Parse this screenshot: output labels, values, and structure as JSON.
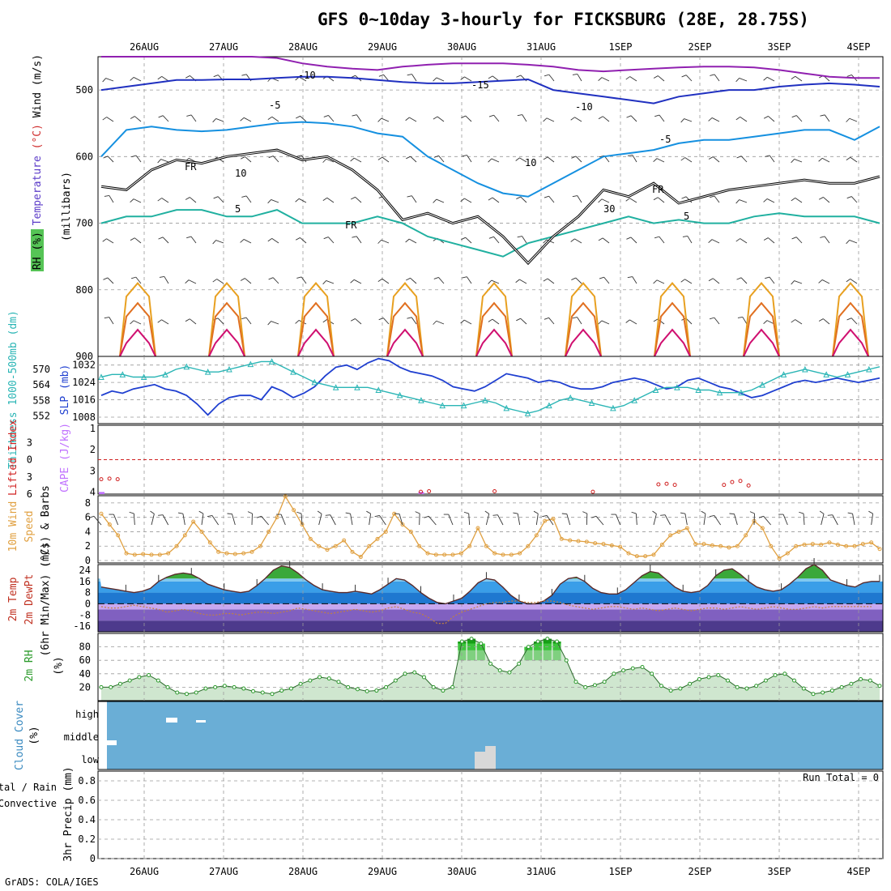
{
  "title": "GFS 0~10day 3-hourly for FICKSBURG (28E, 28.75S)",
  "credit": "GrADS: COLA/IGES",
  "dates": [
    "26AUG",
    "27AUG",
    "28AUG",
    "29AUG",
    "30AUG",
    "31AUG",
    "1SEP",
    "2SEP",
    "3SEP",
    "4SEP"
  ],
  "colors": {
    "grid": "#9a9a9a",
    "slp": "#1f3fd0",
    "thickness": "#2ab5b5",
    "cape": "#c070ff",
    "li": "#d02020",
    "wind": "#e0a040",
    "barb": "#7a5c3a",
    "rh": "#2a9a2a",
    "cloud": "#6aaed6",
    "cloud_low": "#d8d8d8",
    "frz": "#000000"
  },
  "chart_data": [
    {
      "panel": "upper",
      "type": "line",
      "ylabel_parts": [
        "RH (%)",
        "Temperature (°C)",
        "Wind (m/s)"
      ],
      "ylabel_axis": "(millibars)",
      "ylim": [
        900,
        450
      ],
      "yticks": [
        500,
        600,
        700,
        800,
        900
      ],
      "isotherm_labels": [
        {
          "text": "-10",
          "color": "#2030c0"
        },
        {
          "text": "-15",
          "color": "#9020b0"
        },
        {
          "text": "-10",
          "color": "#2030c0"
        },
        {
          "text": "-5",
          "color": "#1590e0"
        },
        {
          "text": "-5",
          "color": "#1590e0"
        },
        {
          "text": "5",
          "color": "#20b0a0"
        },
        {
          "text": "5",
          "color": "#20b0a0"
        },
        {
          "text": "FR",
          "color": "#000000"
        },
        {
          "text": "FR",
          "color": "#000000"
        },
        {
          "text": "FR",
          "color": "#000000"
        },
        {
          "text": "10",
          "color": "#aaaaaa"
        },
        {
          "text": "10",
          "color": "#aaaaaa"
        },
        {
          "text": "30",
          "color": "#aaaaaa"
        }
      ],
      "freezing_level_mb": [
        645,
        650,
        620,
        605,
        610,
        600,
        595,
        590,
        605,
        600,
        620,
        650,
        695,
        685,
        700,
        690,
        720,
        760,
        720,
        690,
        650,
        660,
        640,
        670,
        660,
        650,
        645,
        640,
        635,
        640,
        640,
        630
      ],
      "isotherms": [
        {
          "name": "-15",
          "values": [
            450,
            450,
            450,
            450,
            450,
            450,
            450,
            452,
            460,
            465,
            468,
            470,
            465,
            462,
            460,
            460,
            460,
            462,
            465,
            470,
            472,
            470,
            468,
            466,
            465,
            465,
            466,
            470,
            475,
            480,
            482,
            482
          ]
        },
        {
          "name": "-10",
          "values": [
            500,
            495,
            490,
            485,
            485,
            484,
            484,
            482,
            480,
            480,
            482,
            485,
            488,
            490,
            490,
            488,
            486,
            484,
            500,
            505,
            510,
            515,
            520,
            510,
            505,
            500,
            500,
            495,
            492,
            490,
            492,
            495
          ]
        },
        {
          "name": "-5",
          "values": [
            600,
            560,
            555,
            560,
            562,
            560,
            555,
            550,
            548,
            550,
            555,
            565,
            570,
            600,
            620,
            640,
            655,
            660,
            640,
            620,
            600,
            595,
            590,
            580,
            575,
            575,
            570,
            565,
            560,
            560,
            575,
            555
          ]
        },
        {
          "name": "5",
          "values": [
            700,
            690,
            690,
            680,
            680,
            690,
            690,
            680,
            700,
            700,
            700,
            690,
            700,
            720,
            730,
            740,
            750,
            730,
            720,
            710,
            700,
            690,
            700,
            695,
            700,
            700,
            690,
            685,
            690,
            690,
            690,
            700
          ]
        }
      ]
    },
    {
      "panel": "slp_thickness",
      "type": "line",
      "ylabel_left": "Thickness 1000-500mb (dm)",
      "ylabel_right": "SLP (mb)",
      "yticks_left": [
        552,
        558,
        564,
        570
      ],
      "yticks_right": [
        1008,
        1016,
        1024,
        1032
      ],
      "series": [
        {
          "name": "SLP (mb)",
          "values": [
            1018,
            1020,
            1019,
            1021,
            1022,
            1023,
            1021,
            1020,
            1018,
            1014,
            1009,
            1014,
            1017,
            1018,
            1018,
            1016,
            1022,
            1020,
            1017,
            1019,
            1022,
            1027,
            1031,
            1032,
            1030,
            1033,
            1035,
            1034,
            1031,
            1029,
            1028,
            1027,
            1025,
            1022,
            1021,
            1020,
            1022,
            1025,
            1028,
            1027,
            1026,
            1024,
            1025,
            1024,
            1022,
            1021,
            1021,
            1022,
            1024,
            1025,
            1026,
            1025,
            1023,
            1021,
            1022,
            1025,
            1026,
            1024,
            1022,
            1021,
            1019,
            1017,
            1018,
            1020,
            1022,
            1024,
            1025,
            1024,
            1025,
            1026,
            1025,
            1024,
            1025,
            1026
          ]
        },
        {
          "name": "Thickness (dm)",
          "values": [
            567,
            568,
            568,
            567,
            567,
            567,
            568,
            570,
            571,
            570,
            569,
            569,
            570,
            571,
            572,
            573,
            573,
            571,
            569,
            567,
            565,
            564,
            563,
            563,
            563,
            563,
            562,
            561,
            560,
            559,
            558,
            557,
            556,
            556,
            556,
            557,
            558,
            557,
            555,
            554,
            553,
            554,
            556,
            558,
            559,
            558,
            557,
            556,
            555,
            556,
            558,
            560,
            562,
            563,
            563,
            563,
            562,
            562,
            561,
            561,
            561,
            562,
            564,
            566,
            568,
            569,
            570,
            569,
            568,
            567,
            568,
            569,
            570,
            571
          ]
        }
      ]
    },
    {
      "panel": "cape_li",
      "type": "bar",
      "ylabel_left": "Lifted Index",
      "ylabel_right": "CAPE (J/kg)",
      "yticks_left": [
        -3,
        0,
        3,
        6
      ],
      "yticks_right": [
        1,
        2,
        3,
        4
      ],
      "cape_bars": [
        {
          "index": 0,
          "value": 4
        },
        {
          "index": 39,
          "value": 4
        }
      ],
      "li_points": [
        {
          "index": 0,
          "value": 3.4
        },
        {
          "index": 1,
          "value": 3.3
        },
        {
          "index": 2,
          "value": 3.4
        },
        {
          "index": 39,
          "value": 5.6
        },
        {
          "index": 40,
          "value": 5.5
        },
        {
          "index": 48,
          "value": 5.5
        },
        {
          "index": 60,
          "value": 5.6
        },
        {
          "index": 68,
          "value": 4.3
        },
        {
          "index": 69,
          "value": 4.2
        },
        {
          "index": 70,
          "value": 4.4
        },
        {
          "index": 76,
          "value": 4.4
        },
        {
          "index": 77,
          "value": 3.9
        },
        {
          "index": 78,
          "value": 3.7
        },
        {
          "index": 79,
          "value": 4.5
        }
      ]
    },
    {
      "panel": "wind10m",
      "type": "line",
      "ylabel": "10m Wind Speed (m/s) & Barbs",
      "ylim": [
        0,
        9
      ],
      "yticks": [
        0,
        2,
        4,
        6,
        8
      ],
      "values": [
        6.5,
        5,
        3.5,
        1,
        0.8,
        0.9,
        0.8,
        0.8,
        1,
        2,
        3.5,
        5.4,
        4,
        2.5,
        1.2,
        1.0,
        0.9,
        1.0,
        1.2,
        2,
        4,
        6,
        8.9,
        7,
        5,
        3,
        2,
        1.5,
        2,
        2.8,
        1.2,
        0.5,
        2,
        3,
        4,
        6.5,
        5,
        4,
        2,
        1,
        0.8,
        0.8,
        0.8,
        1.0,
        2.0,
        4.5,
        2,
        1,
        0.8,
        0.8,
        1.0,
        2,
        3.5,
        5.5,
        5.8,
        3,
        2.8,
        2.7,
        2.6,
        2.4,
        2.3,
        2.1,
        1.9,
        1.0,
        0.6,
        0.6,
        0.8,
        2.2,
        3.5,
        4,
        4.5,
        2.3,
        2.3,
        2.1,
        2.0,
        1.8,
        2.0,
        3.5,
        5.5,
        4.5,
        2.0,
        0.3,
        1.0,
        2.0,
        2.2,
        2.3,
        2.2,
        2.5,
        2.2,
        2.0,
        2.0,
        2.3,
        2.5,
        1.6
      ]
    },
    {
      "panel": "temp2m",
      "type": "area",
      "ylabel": "2m Temp 2m DewPt (6hr Min/Max) (°C)",
      "ylim": [
        -20,
        28
      ],
      "yticks": [
        -16,
        -8,
        0,
        8,
        16,
        24
      ],
      "temp": [
        12,
        11,
        10,
        9,
        8,
        9,
        11,
        16,
        19,
        21,
        22,
        21,
        18,
        14,
        12,
        10,
        9,
        8,
        9,
        13,
        18,
        24,
        27,
        26,
        22,
        17,
        13,
        10,
        9,
        8,
        8,
        9,
        8,
        7,
        10,
        14,
        18,
        17,
        13,
        8,
        4,
        1,
        0,
        2,
        4,
        9,
        15,
        18,
        17,
        12,
        6,
        2,
        0,
        0,
        2,
        6,
        14,
        18,
        19,
        16,
        11,
        8,
        7,
        7,
        10,
        15,
        20,
        23,
        22,
        17,
        12,
        9,
        8,
        9,
        13,
        20,
        24,
        25,
        21,
        16,
        12,
        10,
        9,
        10,
        14,
        19,
        25,
        28,
        24,
        17,
        15,
        13,
        12,
        15,
        16,
        16
      ],
      "dewpt": [
        -2,
        -3,
        -3,
        -2,
        -1,
        -2,
        -3,
        -4,
        -6,
        -5,
        -4,
        -5,
        -7,
        -8,
        -8,
        -7,
        -7,
        -8,
        -7,
        -6,
        -6,
        -7,
        -6,
        -5,
        -3,
        -4,
        -5,
        -6,
        -7,
        -6,
        -5,
        -4,
        -5,
        -6,
        -5,
        -3,
        -2,
        -4,
        -6,
        -7,
        -10,
        -14,
        -14,
        -9,
        -6,
        -4,
        -2,
        0,
        1,
        1,
        2,
        2,
        1,
        1,
        2,
        2,
        1,
        -1,
        -2,
        -3,
        -4,
        -3,
        -2,
        -2,
        -3,
        -4,
        -3,
        -4,
        -5,
        -4,
        -3,
        -4,
        -5,
        -4,
        -3,
        -3,
        -4,
        -3,
        -2,
        -3,
        -4,
        -3,
        -2,
        -3,
        -4,
        -4,
        -3,
        -2,
        -3,
        -2,
        -2,
        -2,
        -2,
        -2,
        -2
      ]
    },
    {
      "panel": "rh2m",
      "type": "area",
      "ylabel": "2m RH (%)",
      "ylim": [
        0,
        100
      ],
      "yticks": [
        20,
        40,
        60,
        80
      ],
      "values": [
        20,
        20,
        25,
        30,
        35,
        38,
        30,
        20,
        12,
        10,
        12,
        18,
        20,
        22,
        20,
        18,
        14,
        12,
        10,
        15,
        18,
        25,
        30,
        35,
        33,
        28,
        20,
        17,
        14,
        15,
        20,
        30,
        40,
        42,
        35,
        20,
        15,
        20,
        88,
        92,
        85,
        55,
        45,
        42,
        55,
        80,
        88,
        92,
        88,
        60,
        28,
        20,
        23,
        28,
        40,
        45,
        48,
        50,
        40,
        22,
        15,
        18,
        25,
        32,
        35,
        38,
        30,
        20,
        18,
        22,
        30,
        38,
        40,
        30,
        18,
        10,
        12,
        15,
        20,
        25,
        32,
        30,
        22
      ]
    },
    {
      "panel": "cloud",
      "type": "bar",
      "ylabel": "Cloud Cover (%)",
      "levels": [
        "high",
        "middle",
        "low"
      ]
    },
    {
      "panel": "precip",
      "type": "bar",
      "ylabel_parts": [
        "Total / Rain",
        "Convective"
      ],
      "ylabel_axis": "3hr Precip (mm)",
      "ylim": [
        0,
        0.9
      ],
      "yticks": [
        0,
        0.2,
        0.4,
        0.6,
        0.8
      ],
      "run_total_text": "Run Total = 0",
      "values": []
    }
  ]
}
